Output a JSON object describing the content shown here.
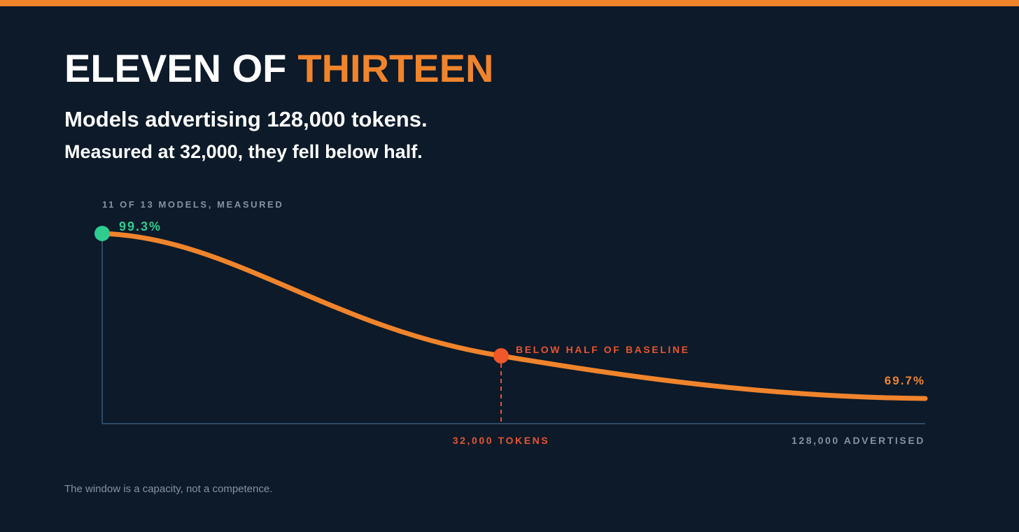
{
  "header": {
    "title_lead": "ELEVEN OF",
    "title_highlight": "THIRTEEN",
    "subtitle": "Models advertising 128,000 tokens.",
    "subtitle2": "Measured at 32,000, they fell below half."
  },
  "figure": {
    "axis_label": "11 OF 13 MODELS, MEASURED",
    "start_label": "99.3%",
    "mid_label": "BELOW HALF OF BASELINE",
    "end_label": "69.7%",
    "mid_x_label": "32,000 TOKENS",
    "end_x_label": "128,000 ADVERTISED"
  },
  "footer": {
    "note": "The window is a capacity, not a competence."
  }
}
